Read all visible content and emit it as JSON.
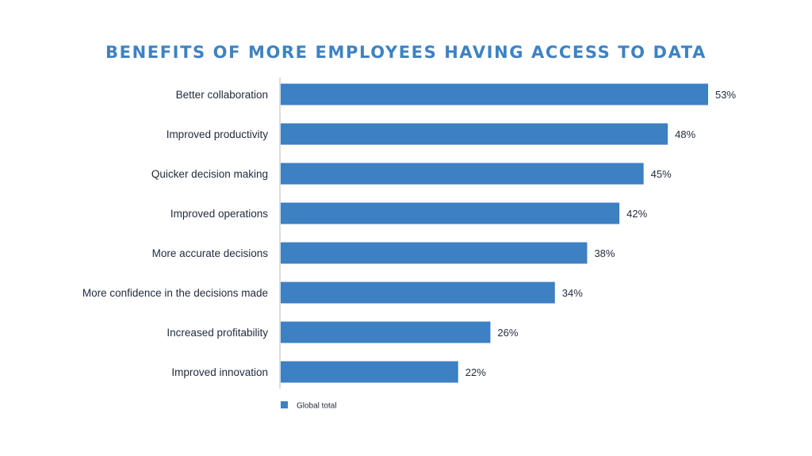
{
  "colors": {
    "title": "#3d82c4",
    "bar": "#3d80c3",
    "axis": "#b8b8b8",
    "text": "#1f2a3d",
    "background": "#ffffff"
  },
  "chart_data": {
    "type": "bar",
    "orientation": "horizontal",
    "title": "BENEFITS OF MORE EMPLOYEES HAVING ACCESS TO DATA",
    "categories": [
      "Better collaboration",
      "Improved productivity",
      "Quicker decision making",
      "Improved operations",
      "More accurate decisions",
      "More confidence in the decisions made",
      "Increased profitability",
      "Improved innovation"
    ],
    "series": [
      {
        "name": "Global total",
        "values": [
          53,
          48,
          45,
          42,
          38,
          34,
          26,
          22
        ],
        "value_labels": [
          "53%",
          "48%",
          "45%",
          "42%",
          "38%",
          "34%",
          "26%",
          "22%"
        ]
      }
    ],
    "xlim": [
      0,
      53
    ],
    "grid": false,
    "legend": "bottom-left"
  }
}
